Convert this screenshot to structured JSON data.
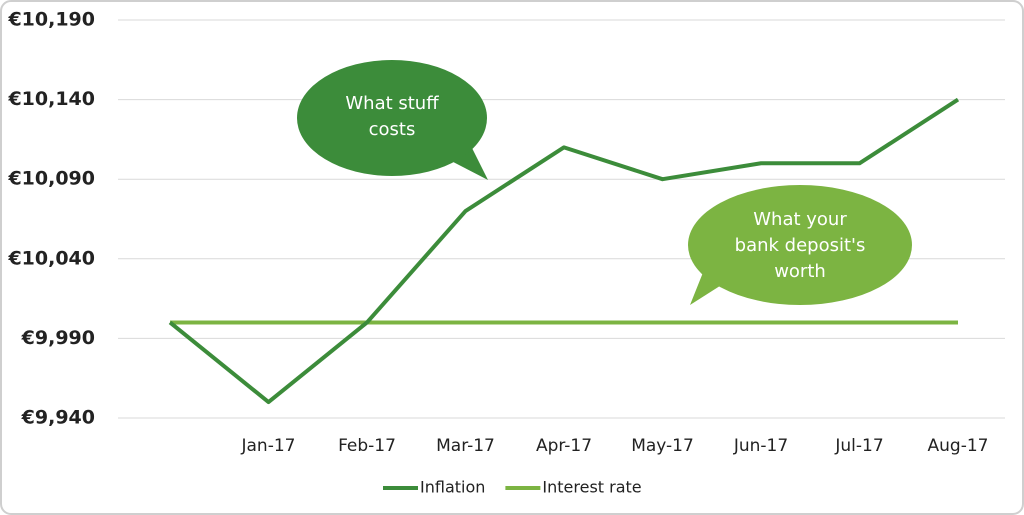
{
  "chart_data": {
    "type": "line",
    "categories": [
      null,
      "Jan-17",
      "Feb-17",
      "Mar-17",
      "Apr-17",
      "May-17",
      "Jun-17",
      "Jul-17",
      "Aug-17"
    ],
    "series": [
      {
        "name": "Inflation",
        "color": "#3c8c3a",
        "values": [
          10000,
          9950,
          10000,
          10070,
          10110,
          10090,
          10100,
          10100,
          10140
        ]
      },
      {
        "name": "Interest rate",
        "color": "#7cb442",
        "values": [
          10000,
          10000,
          10000,
          10000,
          10000,
          10000,
          10000,
          10000,
          10000
        ]
      }
    ],
    "ylim": [
      9940,
      10190
    ],
    "yticks": [
      {
        "value": 9940,
        "label": "€9,940"
      },
      {
        "value": 9990,
        "label": "€9,990"
      },
      {
        "value": 10040,
        "label": "€10,040"
      },
      {
        "value": 10090,
        "label": "€10,090"
      },
      {
        "value": 10140,
        "label": "€10,140"
      },
      {
        "value": 10190,
        "label": "€10,190"
      }
    ],
    "grid": true,
    "legend": "bottom",
    "annotations": [
      {
        "lines": [
          "What stuff",
          "costs"
        ],
        "color": "#3c8c3a"
      },
      {
        "lines": [
          "What your",
          "bank deposit's",
          "worth"
        ],
        "color": "#7cb442"
      }
    ]
  }
}
